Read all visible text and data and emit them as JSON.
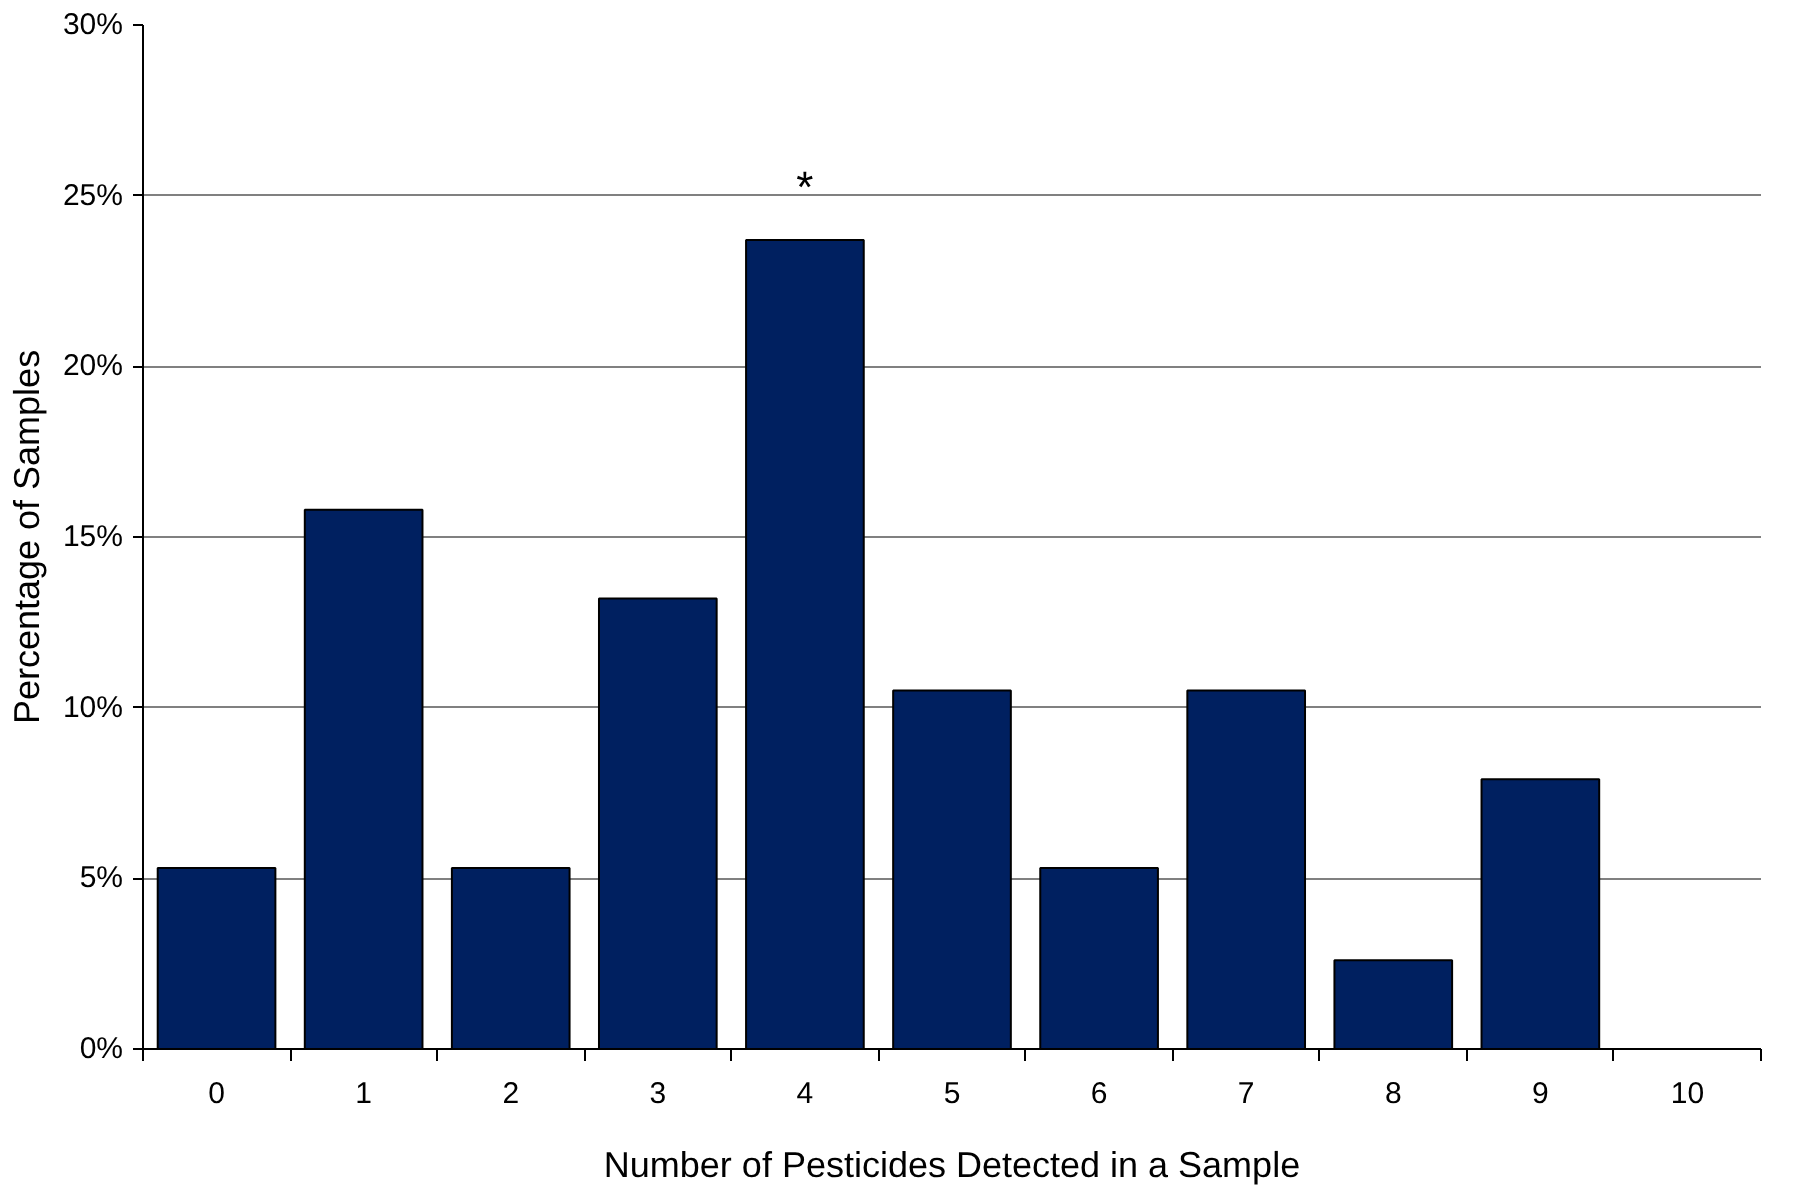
{
  "chart_data": {
    "type": "bar",
    "xlabel": "Number of Pesticides Detected in a Sample",
    "ylabel": "Percentage of Samples",
    "categories": [
      "0",
      "1",
      "2",
      "3",
      "4",
      "5",
      "6",
      "7",
      "8",
      "9",
      "10"
    ],
    "values": [
      5.3,
      15.8,
      5.3,
      13.2,
      23.7,
      10.5,
      5.3,
      10.5,
      2.6,
      7.9,
      0
    ],
    "color": "#002060",
    "ylim": [
      0,
      30
    ],
    "yticks": [
      {
        "value": 0,
        "label": "0%"
      },
      {
        "value": 5,
        "label": "5%"
      },
      {
        "value": 10,
        "label": "10%"
      },
      {
        "value": 15,
        "label": "15%"
      },
      {
        "value": 20,
        "label": "20%"
      },
      {
        "value": 25,
        "label": "25%"
      },
      {
        "value": 30,
        "label": "30%"
      }
    ],
    "grid": "y",
    "annotations": [
      "*"
    ]
  }
}
